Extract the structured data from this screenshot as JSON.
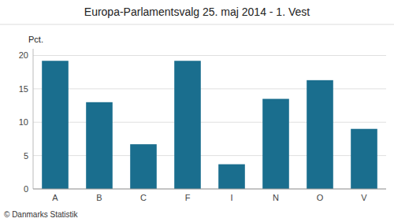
{
  "chart_data": {
    "type": "bar",
    "title": "Europa-Parlamentsvalg 25. maj 2014 - 1. Vest",
    "y_label": "Pct.",
    "footer": "© Danmarks Statistik",
    "categories": [
      "A",
      "B",
      "C",
      "F",
      "I",
      "N",
      "O",
      "V"
    ],
    "values": [
      19.2,
      13.0,
      6.7,
      19.2,
      3.7,
      13.5,
      16.3,
      9.0
    ],
    "color": "#1a6e8e",
    "ylim": [
      0,
      21
    ],
    "yticks": [
      0,
      5,
      10,
      15,
      20
    ],
    "grid": true
  }
}
